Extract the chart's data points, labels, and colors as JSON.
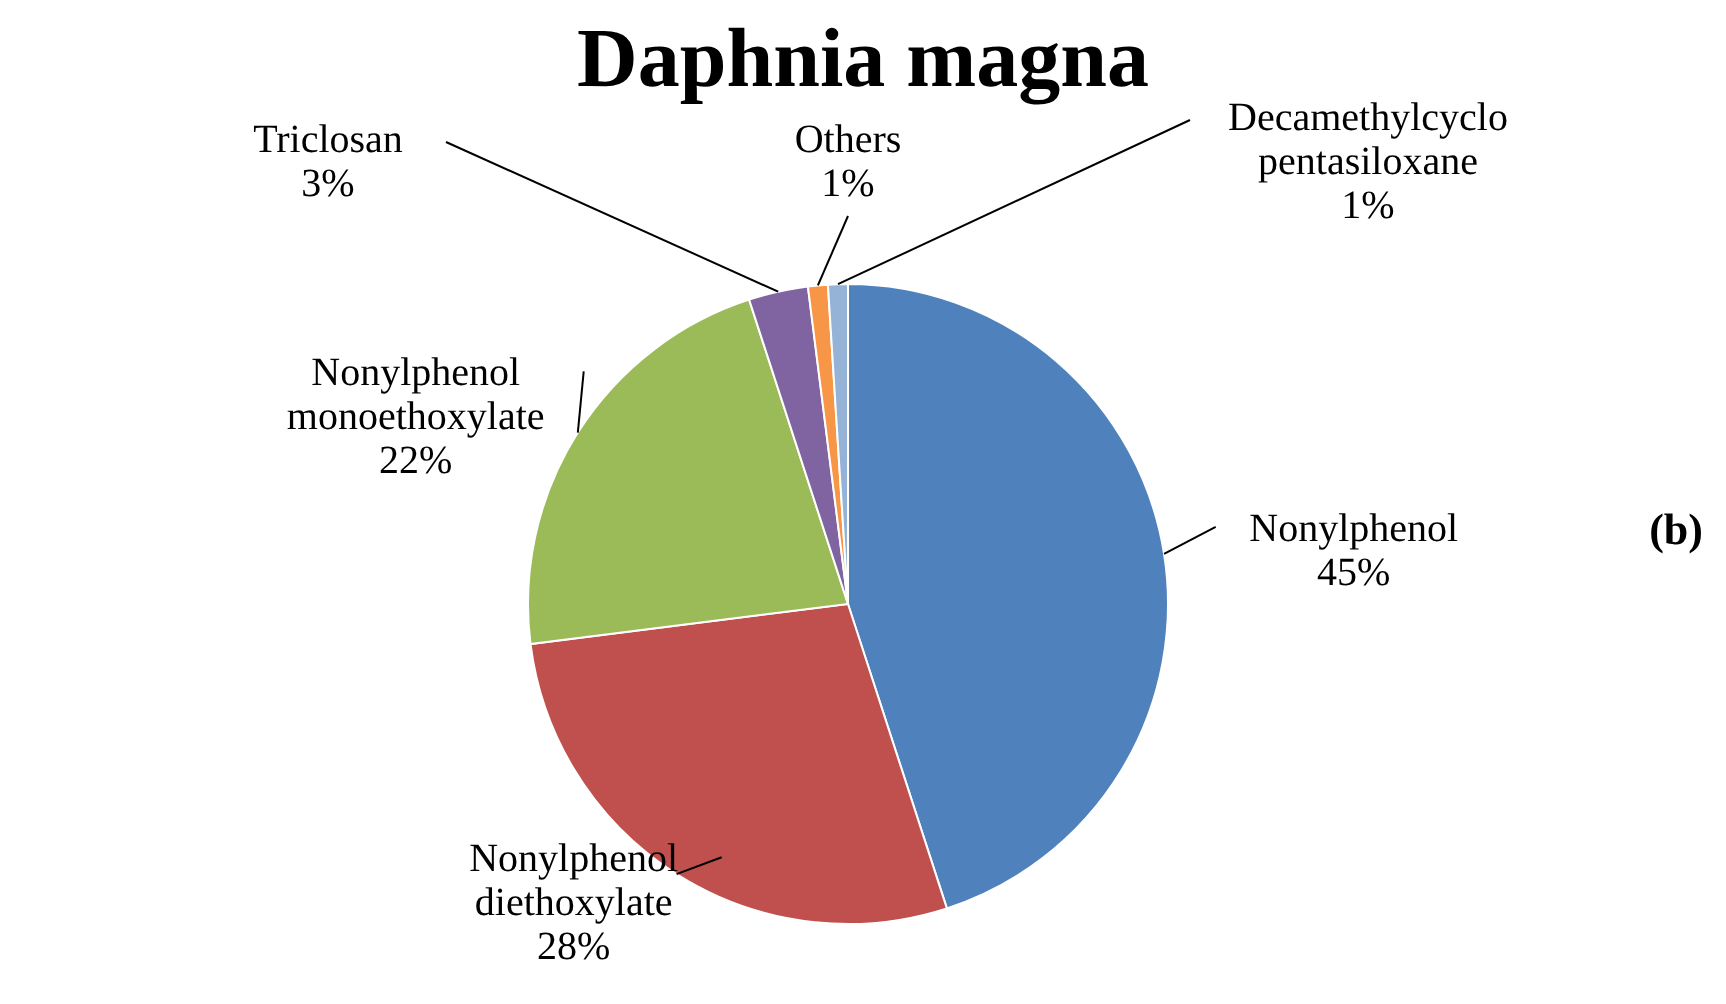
{
  "chart_data": {
    "type": "pie",
    "title": "Daphnia magna",
    "categories": [
      "Nonylphenol",
      "Nonylphenol diethoxylate",
      "Nonylphenol monoethoxylate",
      "Triclosan",
      "Others",
      "Decamethylcyclo pentasiloxane"
    ],
    "values": [
      45,
      28,
      22,
      3,
      1,
      1
    ],
    "value_labels": [
      "45%",
      "28%",
      "22%",
      "3%",
      "1%",
      "1%"
    ],
    "colors": [
      "#4f81bd",
      "#c0504d",
      "#9bbb59",
      "#8064a2",
      "#f79646",
      "#95b3d7"
    ],
    "annotations": [
      "(b)"
    ],
    "legend": false
  }
}
